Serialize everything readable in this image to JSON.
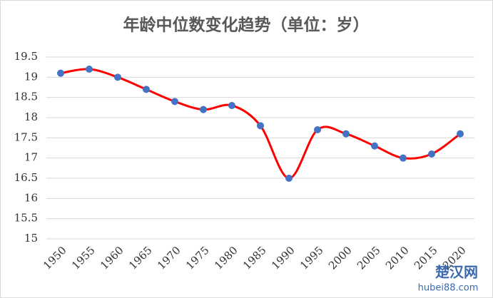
{
  "chart_data": {
    "type": "line",
    "title": "年龄中位数变化趋势（单位：岁）",
    "categories": [
      "1950",
      "1955",
      "1960",
      "1965",
      "1970",
      "1975",
      "1980",
      "1985",
      "1990",
      "1995",
      "2000",
      "2005",
      "2010",
      "2015",
      "2020"
    ],
    "series": [
      {
        "name": "年龄中位数",
        "color": "#ff0000",
        "marker_color": "#4472c4",
        "values": [
          19.1,
          19.2,
          19.0,
          18.7,
          18.4,
          18.2,
          18.3,
          17.8,
          16.5,
          17.7,
          17.6,
          17.3,
          17.0,
          17.1,
          17.6
        ]
      }
    ],
    "ylim": [
      15,
      19.5
    ],
    "yticks": [
      15,
      15.5,
      16,
      16.5,
      17,
      17.5,
      18,
      18.5,
      19,
      19.5
    ],
    "grid": true,
    "smooth": true,
    "watermark": {
      "brand": "楚汉网",
      "url": "hubei88.com"
    }
  }
}
